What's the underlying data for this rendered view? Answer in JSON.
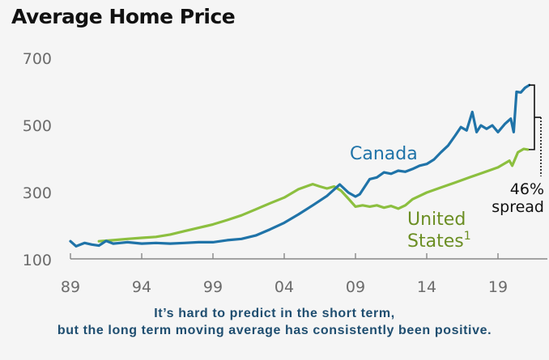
{
  "chart_data": {
    "type": "line",
    "title": "Average Home Price",
    "xlabel": "",
    "ylabel": "",
    "xlim": [
      1989,
      2021.5
    ],
    "ylim": [
      100,
      700
    ],
    "grid": false,
    "y_ticks": [
      {
        "value": 100,
        "label": "100"
      },
      {
        "value": 300,
        "label": "300"
      },
      {
        "value": 500,
        "label": "500"
      },
      {
        "value": 700,
        "label": "700"
      }
    ],
    "x_ticks": [
      {
        "value": 1989,
        "label": "89"
      },
      {
        "value": 1994,
        "label": "94"
      },
      {
        "value": 1999,
        "label": "99"
      },
      {
        "value": 2004,
        "label": "04"
      },
      {
        "value": 2009,
        "label": "09"
      },
      {
        "value": 2014,
        "label": "14"
      },
      {
        "value": 2019,
        "label": "19"
      }
    ],
    "series": [
      {
        "name": "Canada",
        "color": "#1f73a8",
        "x": [
          1989,
          1989.4,
          1990,
          1990.5,
          1991,
          1991.5,
          1992,
          1992.5,
          1993,
          1994,
          1995,
          1996,
          1997,
          1998,
          1999,
          2000,
          2001,
          2002,
          2003,
          2004,
          2005,
          2006,
          2007,
          2007.9,
          2008.5,
          2009.0,
          2009.3,
          2010,
          2010.5,
          2011,
          2011.5,
          2012,
          2012.5,
          2013,
          2013.5,
          2014,
          2014.5,
          2015,
          2015.5,
          2016,
          2016.4,
          2016.8,
          2017.2,
          2017.5,
          2017.8,
          2018.2,
          2018.6,
          2019,
          2019.5,
          2019.9,
          2020.1,
          2020.3,
          2020.6,
          2020.9,
          2021.2
        ],
        "values": [
          155,
          140,
          150,
          145,
          142,
          156,
          148,
          150,
          152,
          148,
          150,
          148,
          150,
          152,
          152,
          158,
          162,
          172,
          190,
          210,
          235,
          262,
          290,
          324,
          300,
          288,
          295,
          340,
          345,
          360,
          356,
          365,
          362,
          370,
          380,
          385,
          398,
          420,
          440,
          470,
          495,
          485,
          540,
          480,
          500,
          490,
          500,
          480,
          505,
          520,
          480,
          600,
          598,
          612,
          620
        ]
      },
      {
        "name": "United States",
        "footnote": "1",
        "color": "#8cbf3f",
        "x": [
          1991,
          1992,
          1993,
          1994,
          1995,
          1996,
          1997,
          1998,
          1999,
          2000,
          2001,
          2002,
          2003,
          2004,
          2005,
          2006,
          2006.5,
          2007,
          2007.5,
          2008,
          2008.5,
          2009,
          2009.5,
          2010,
          2010.5,
          2011,
          2011.5,
          2012,
          2012.5,
          2013,
          2014,
          2015,
          2016,
          2017,
          2018,
          2019,
          2019.8,
          2020.0,
          2020.4,
          2020.8,
          2021.1
        ],
        "values": [
          155,
          158,
          162,
          165,
          168,
          175,
          185,
          195,
          205,
          218,
          232,
          250,
          268,
          285,
          310,
          325,
          318,
          312,
          318,
          305,
          282,
          258,
          262,
          258,
          262,
          255,
          260,
          252,
          262,
          280,
          300,
          315,
          330,
          345,
          360,
          375,
          395,
          380,
          420,
          430,
          428
        ]
      }
    ],
    "annotations": {
      "canada_label": "Canada",
      "us_label": "United",
      "us_label_line2": "States",
      "us_superscript": "1",
      "spread_value": "46%",
      "spread_label": "spread"
    },
    "legend": "inline-labels"
  },
  "caption": {
    "line1": "It’s hard to predict in the short term,",
    "line2": "but the long term moving average has consistently been positive."
  }
}
